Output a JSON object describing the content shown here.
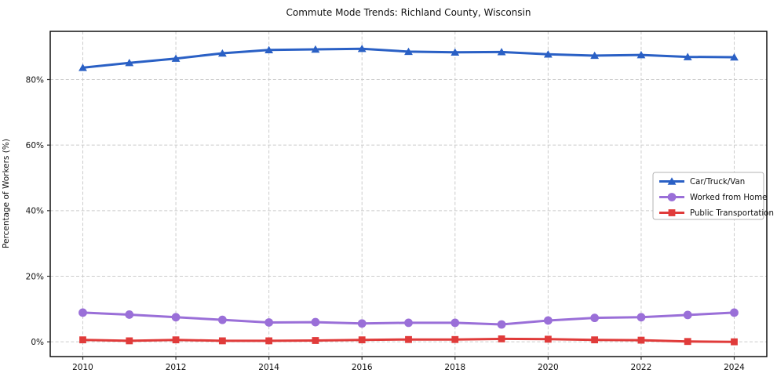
{
  "title": "Commute Mode Trends: Richland County, Wisconsin",
  "colors": {
    "background": "#ffffff",
    "grid": "#cccccc",
    "spine": "#000000",
    "tick": "#333333",
    "legend_border": "#b3b3b3",
    "car_truck_van": "#2a60c5",
    "worked_from_home": "#9a6fd8",
    "public_transportation": "#e03b3a"
  },
  "chart_data": {
    "type": "line",
    "title": "Commute Mode Trends: Richland County, Wisconsin",
    "xlabel": "",
    "ylabel": "Percentage of Workers (%)",
    "x": [
      2010,
      2011,
      2012,
      2013,
      2014,
      2015,
      2016,
      2017,
      2018,
      2019,
      2020,
      2021,
      2022,
      2023,
      2024
    ],
    "x_ticks": [
      2010,
      2012,
      2014,
      2016,
      2018,
      2020,
      2022,
      2024
    ],
    "y_ticks": [
      0,
      20,
      40,
      60,
      80
    ],
    "y_tick_suffix": "%",
    "xlim": [
      2009.3,
      2024.7
    ],
    "ylim": [
      -4.5,
      94.7
    ],
    "grid": true,
    "grid_style": "dashed",
    "legend_position": "center-right",
    "series": [
      {
        "name": "Car/Truck/Van",
        "color": "#2a60c5",
        "marker": "triangle",
        "values": [
          83.6,
          85.1,
          86.4,
          88.0,
          89.0,
          89.2,
          89.4,
          88.5,
          88.3,
          88.4,
          87.7,
          87.3,
          87.5,
          86.9,
          86.8
        ]
      },
      {
        "name": "Worked from Home",
        "color": "#9a6fd8",
        "marker": "circle",
        "values": [
          8.9,
          8.3,
          7.5,
          6.7,
          5.9,
          6.0,
          5.6,
          5.8,
          5.8,
          5.3,
          6.5,
          7.3,
          7.5,
          8.2,
          8.9
        ]
      },
      {
        "name": "Public Transportation",
        "color": "#e03b3a",
        "marker": "square",
        "values": [
          0.6,
          0.3,
          0.6,
          0.3,
          0.3,
          0.4,
          0.6,
          0.7,
          0.7,
          0.9,
          0.8,
          0.6,
          0.5,
          0.1,
          0.0
        ]
      }
    ]
  }
}
